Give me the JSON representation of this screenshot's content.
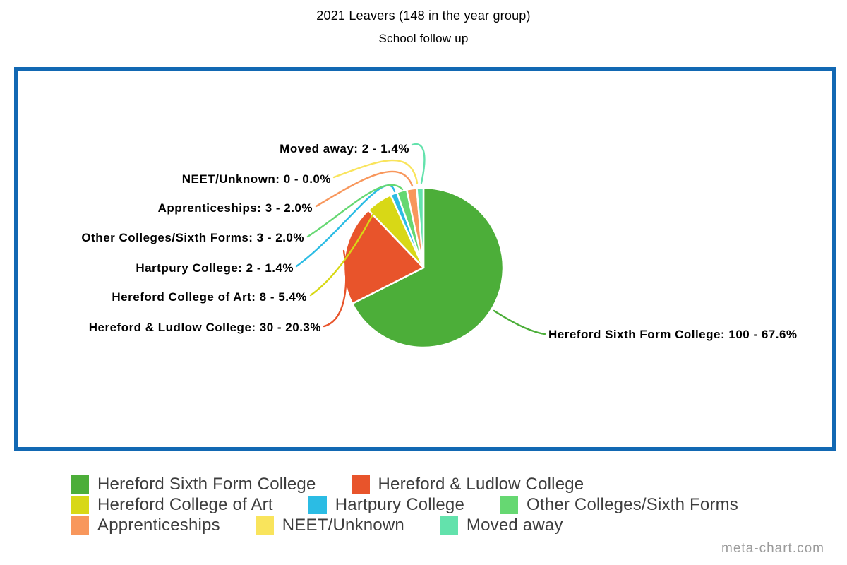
{
  "header": {
    "title": "2021 Leavers (148 in the year group)",
    "subtitle": "School follow up"
  },
  "frame": {
    "border_color": "#1268B3"
  },
  "watermark": "meta-chart.com",
  "chart_data": {
    "type": "pie",
    "title": "2021 Leavers (148 in the year group)",
    "subtitle": "School follow up",
    "total": 148,
    "start_angle_deg": 0,
    "direction": "clockwise",
    "label_format": "{name}: {value} - {pct}%",
    "legend_position": "bottom",
    "series": [
      {
        "name": "Hereford Sixth Form College",
        "value": 100,
        "pct": "67.6",
        "color": "#4CAE39"
      },
      {
        "name": "Hereford & Ludlow College",
        "value": 30,
        "pct": "20.3",
        "color": "#E8542B"
      },
      {
        "name": "Hereford College of Art",
        "value": 8,
        "pct": "5.4",
        "color": "#D8D816"
      },
      {
        "name": "Hartpury College",
        "value": 2,
        "pct": "1.4",
        "color": "#2BBCE4"
      },
      {
        "name": "Other Colleges/Sixth Forms",
        "value": 3,
        "pct": "2.0",
        "color": "#66D872"
      },
      {
        "name": "Apprenticeships",
        "value": 3,
        "pct": "2.0",
        "color": "#F8975C"
      },
      {
        "name": "NEET/Unknown",
        "value": 0,
        "pct": "0.0",
        "color": "#F9E45C"
      },
      {
        "name": "Moved away",
        "value": 2,
        "pct": "1.4",
        "color": "#63E2AC"
      }
    ]
  }
}
